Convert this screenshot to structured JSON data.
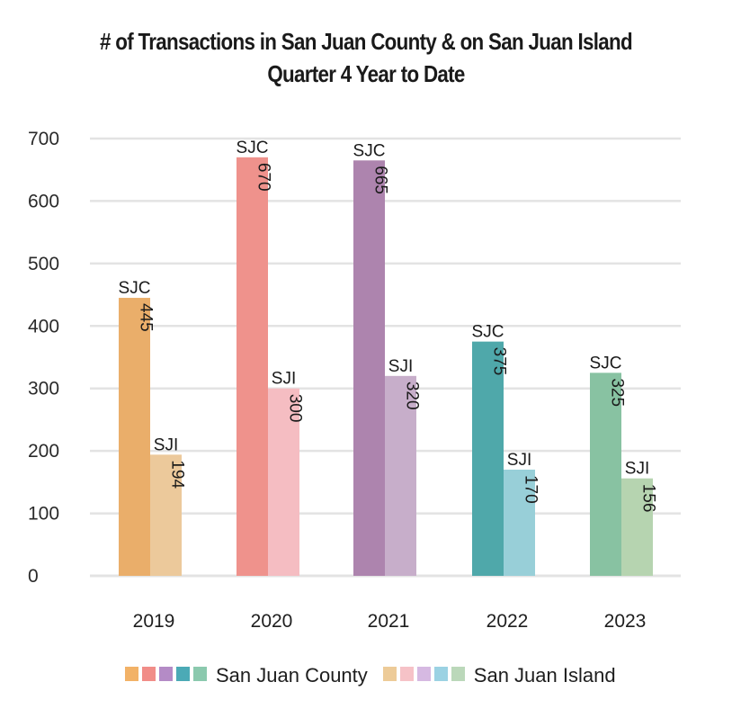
{
  "chart_data": {
    "type": "bar",
    "title": "# of Transactions in San Juan County & on San Juan Island",
    "subtitle": "Quarter 4 Year to Date",
    "xlabel": "",
    "ylabel": "",
    "ylim": [
      0,
      700
    ],
    "yticks": [
      0,
      100,
      200,
      300,
      400,
      500,
      600,
      700
    ],
    "grid": true,
    "legend_position": "bottom",
    "categories": [
      "2019",
      "2020",
      "2021",
      "2022",
      "2023"
    ],
    "series": [
      {
        "name": "San Juan County",
        "short": "SJC",
        "values": [
          445,
          670,
          665,
          375,
          325
        ],
        "colors": [
          "#EAAE6A",
          "#EF928C",
          "#AD84AE",
          "#4FA8AA",
          "#88C2A2"
        ]
      },
      {
        "name": "San Juan Island",
        "short": "SJI",
        "values": [
          194,
          300,
          320,
          170,
          156
        ],
        "colors": [
          "#ECC99B",
          "#F5BDC2",
          "#C7AECA",
          "#98CFD8",
          "#B6D4B0"
        ]
      }
    ]
  },
  "legend": {
    "county_label": "San Juan County",
    "island_label": "San Juan Island",
    "county_colors": [
      "#F2B267",
      "#F18D88",
      "#B48BC6",
      "#4BAAB6",
      "#8BC9AE"
    ],
    "island_colors": [
      "#EDCB98",
      "#F6C2C7",
      "#D6B9E2",
      "#9BD2E3",
      "#BBD8BA"
    ]
  }
}
